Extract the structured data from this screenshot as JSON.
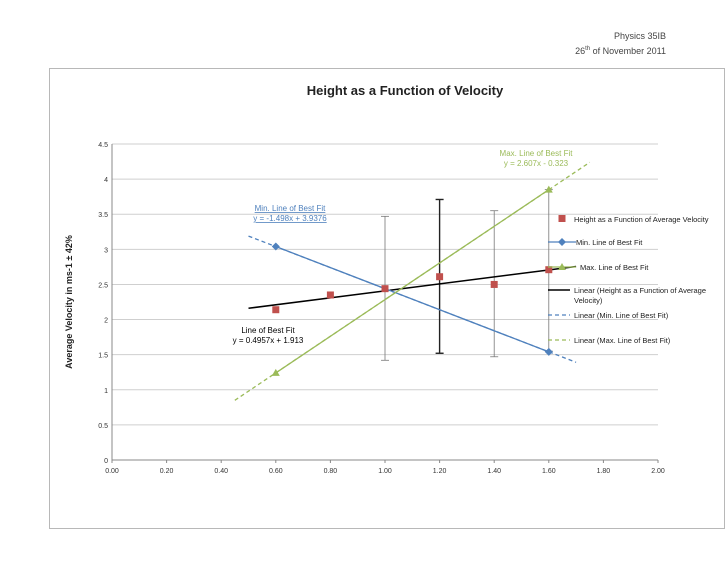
{
  "header": {
    "course": "Physics 35IB",
    "day": "26",
    "day_suffix": "th",
    "month_year": "of November 2011"
  },
  "chart_data": {
    "type": "scatter",
    "title": "Height as a Function of Velocity",
    "xlabel": "",
    "ylabel": "Average Velocity in ms-1 ± 42%",
    "xlim": [
      0,
      2
    ],
    "ylim": [
      0,
      4.5
    ],
    "x_ticks": [
      "0.00",
      "0.20",
      "0.40",
      "0.60",
      "0.80",
      "1.00",
      "1.20",
      "1.40",
      "1.60",
      "1.80",
      "2.00"
    ],
    "y_ticks": [
      "0",
      "0.5",
      "1",
      "1.5",
      "2",
      "2.5",
      "3",
      "3.5",
      "4",
      "4.5"
    ],
    "grid": "horizontal",
    "legend_position": "right",
    "series": [
      {
        "name": "Height as a Function of Average Velocity",
        "kind": "points",
        "marker": "square",
        "color": "#c0504d",
        "x": [
          0.6,
          0.8,
          1.0,
          1.2,
          1.4,
          1.6
        ],
        "y": [
          2.14,
          2.35,
          2.44,
          2.61,
          2.5,
          2.71
        ],
        "error_low": [
          null,
          null,
          1.42,
          1.52,
          1.47,
          1.55
        ],
        "error_high": [
          null,
          null,
          3.47,
          3.71,
          3.55,
          3.85
        ]
      },
      {
        "name": "Min. Line of Best Fit",
        "kind": "line",
        "marker": "diamond",
        "color": "#4f81bd",
        "x": [
          0.6,
          1.6
        ],
        "y": [
          3.04,
          1.54
        ]
      },
      {
        "name": "Max. Line of Best Fit",
        "kind": "line",
        "marker": "triangle",
        "color": "#9bbb59",
        "x": [
          0.6,
          1.6
        ],
        "y": [
          1.24,
          3.85
        ]
      }
    ],
    "trendlines": [
      {
        "name": "Linear (Height as a Function of Average Velocity)",
        "legend_lines": [
          "Linear (Height as a Function of Average",
          "Velocity)"
        ],
        "style": "solid",
        "color": "#000000",
        "slope": 0.4957,
        "intercept": 1.913,
        "x_range": [
          0.5,
          1.7
        ],
        "equation": "y = 0.4957x + 1.913",
        "label": "Line of Best Fit"
      },
      {
        "name": "Linear (Min. Line of Best Fit)",
        "style": "dashed",
        "color": "#4f81bd",
        "slope": -1.498,
        "intercept": 3.9376,
        "x_range": [
          0.5,
          1.7
        ],
        "equation": "y = -1.498x + 3.9376",
        "label": "Min. Line of Best Fit"
      },
      {
        "name": "Linear (Max. Line of Best Fit)",
        "style": "dashed",
        "color": "#9bbb59",
        "slope": 2.607,
        "intercept": -0.323,
        "x_range": [
          0.45,
          1.75
        ],
        "equation": "y = 2.607x - 0.323",
        "label": "Max. Line of Best Fit"
      }
    ]
  }
}
